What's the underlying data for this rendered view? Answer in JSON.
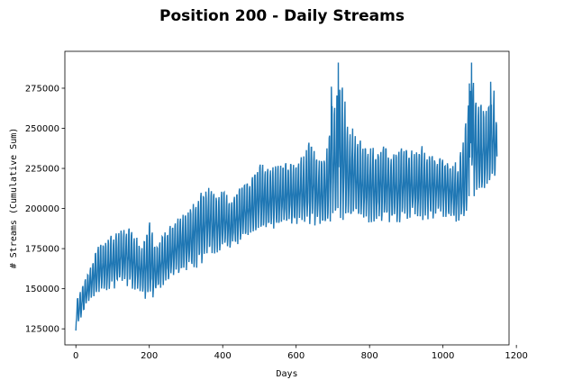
{
  "chart_data": {
    "type": "line",
    "title": "Position 200 - Daily Streams",
    "xlabel": "Days",
    "ylabel": "# Streams (Cumulative Sum)",
    "xlim": [
      -30,
      1180
    ],
    "ylim": [
      115000,
      298000
    ],
    "xticks": [
      0,
      200,
      400,
      600,
      800,
      1000,
      1200
    ],
    "yticks": [
      125000,
      150000,
      175000,
      200000,
      225000,
      250000,
      275000
    ],
    "grid": false,
    "legend": "none",
    "series_color": "#1f77b4",
    "n_points": 1148,
    "series": [
      {
        "values_description": "daily series with strong weekly oscillation; values below are approximate trend envelope (low, high) per segment",
        "x": [
          0,
          10,
          20,
          30,
          40,
          60,
          80,
          100,
          120,
          140,
          160,
          180,
          200,
          220,
          240,
          260,
          280,
          300,
          320,
          340,
          360,
          380,
          400,
          420,
          440,
          460,
          480,
          500,
          520,
          540,
          560,
          580,
          600,
          620,
          640,
          660,
          680,
          700,
          720,
          740,
          760,
          780,
          800,
          820,
          840,
          860,
          880,
          900,
          920,
          940,
          960,
          980,
          1000,
          1020,
          1040,
          1060,
          1080,
          1100,
          1120,
          1140,
          1148
        ],
        "low": [
          123000,
          128000,
          133000,
          138000,
          143000,
          145000,
          147000,
          148000,
          150000,
          149000,
          146000,
          143000,
          140000,
          145000,
          150000,
          153000,
          156000,
          158000,
          160000,
          162000,
          168000,
          170000,
          173000,
          172000,
          175000,
          178000,
          180000,
          182000,
          183000,
          185000,
          186000,
          187000,
          188000,
          188000,
          187000,
          186000,
          186000,
          190000,
          183000,
          185000,
          192000,
          190000,
          189000,
          187000,
          188000,
          190000,
          189000,
          191000,
          193000,
          190000,
          191000,
          192000,
          192000,
          191000,
          188000,
          185000,
          205000,
          200000,
          210000,
          212000,
          213000
        ],
        "high": [
          145000,
          148000,
          155000,
          160000,
          165000,
          180000,
          182000,
          186000,
          190000,
          192000,
          185000,
          180000,
          195000,
          180000,
          188000,
          193000,
          196000,
          200000,
          207000,
          214000,
          216000,
          210000,
          214000,
          210000,
          214000,
          218000,
          222000,
          233000,
          231000,
          228000,
          230000,
          232000,
          232000,
          235000,
          249000,
          232000,
          236000,
          275000,
          291000,
          260000,
          250000,
          245000,
          240000,
          241000,
          244000,
          236000,
          240000,
          243000,
          238000,
          242000,
          238000,
          236000,
          234000,
          233000,
          230000,
          255000,
          291000,
          270000,
          265000,
          279000,
          254000
        ]
      }
    ]
  }
}
